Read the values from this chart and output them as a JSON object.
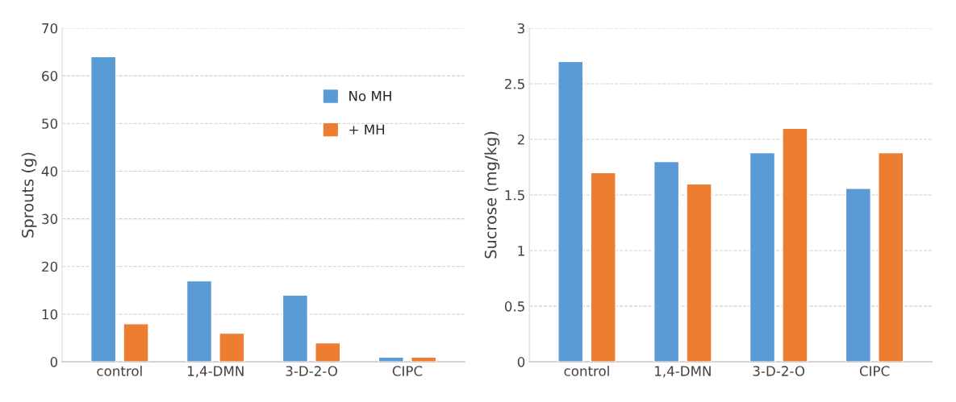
{
  "chart_data": [
    {
      "type": "bar",
      "ylabel": "Sprouts (g)",
      "categories": [
        "control",
        "1,4-DMN",
        "3-D-2-O",
        "CIPC"
      ],
      "series": [
        {
          "name": "No MH",
          "color": "#5b9bd5",
          "values": [
            64,
            17,
            14,
            1
          ]
        },
        {
          "name": "+ MH",
          "color": "#ed7d31",
          "values": [
            8,
            6,
            4,
            1
          ]
        }
      ],
      "ylim": [
        0,
        70
      ],
      "yticks": [
        0,
        10,
        20,
        30,
        40,
        50,
        60,
        70
      ],
      "grid": "y",
      "legend": "top right"
    },
    {
      "type": "bar",
      "ylabel": "Sucrose (mg/kg)",
      "categories": [
        "control",
        "1,4-DMN",
        "3-D-2-O",
        "CIPC"
      ],
      "series": [
        {
          "color": "#5b9bd5",
          "values": [
            2.7,
            1.8,
            1.88,
            1.56
          ]
        },
        {
          "color": "#ed7d31",
          "values": [
            1.7,
            1.6,
            2.1,
            1.88
          ]
        }
      ],
      "ylim": [
        0,
        3
      ],
      "yticks": [
        0,
        0.5,
        1,
        1.5,
        2,
        2.5,
        3
      ],
      "grid": "y"
    }
  ]
}
